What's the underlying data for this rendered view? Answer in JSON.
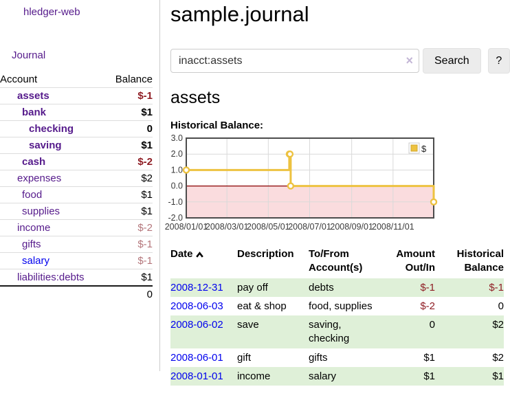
{
  "colors": {
    "link_purple": "#551a8b",
    "link_blue": "#0000ee",
    "negative_strong": "#8f1d24",
    "negative_faded": "#b4767b",
    "row_stripe_green": "#dff0d8",
    "chart_line_gold": "#edc240",
    "chart_negative_fill": "#fadcde",
    "chart_zero_line": "#8b0000",
    "chart_border": "#4c4c4c",
    "chart_grid": "#d9d9d9"
  },
  "sidebar": {
    "brand": "hledger-web",
    "journal_link": "Journal",
    "accounts_table": {
      "header_account": "Account",
      "header_balance": "Balance",
      "rows": [
        {
          "name": "assets",
          "level": 1,
          "bold": true,
          "blue": false,
          "balance": "$-1",
          "balance_style": "neg"
        },
        {
          "name": "bank",
          "level": 2,
          "bold": true,
          "blue": false,
          "balance": "$1",
          "balance_style": "pos"
        },
        {
          "name": "checking",
          "level": 3,
          "bold": true,
          "blue": false,
          "balance": "0",
          "balance_style": "pos"
        },
        {
          "name": "saving",
          "level": 3,
          "bold": true,
          "blue": false,
          "balance": "$1",
          "balance_style": "pos"
        },
        {
          "name": "cash",
          "level": 2,
          "bold": true,
          "blue": false,
          "balance": "$-2",
          "balance_style": "neg"
        },
        {
          "name": "expenses",
          "level": 1,
          "bold": false,
          "blue": false,
          "balance": "$2",
          "balance_style": "pos"
        },
        {
          "name": "food",
          "level": 2,
          "bold": false,
          "blue": false,
          "balance": "$1",
          "balance_style": "pos"
        },
        {
          "name": "supplies",
          "level": 2,
          "bold": false,
          "blue": false,
          "balance": "$1",
          "balance_style": "pos"
        },
        {
          "name": "income",
          "level": 1,
          "bold": false,
          "blue": false,
          "balance": "$-2",
          "balance_style": "neg-faded"
        },
        {
          "name": "gifts",
          "level": 2,
          "bold": false,
          "blue": false,
          "balance": "$-1",
          "balance_style": "neg-faded"
        },
        {
          "name": "salary",
          "level": 2,
          "bold": false,
          "blue": true,
          "balance": "$-1",
          "balance_style": "neg-faded"
        },
        {
          "name": "liabilities:debts",
          "level": 1,
          "bold": false,
          "blue": false,
          "balance": "$1",
          "balance_style": "pos"
        }
      ],
      "total": "0"
    }
  },
  "main": {
    "title": "sample.journal",
    "search": {
      "query": "inacct:assets",
      "clear_icon": "×",
      "button_label": "Search",
      "help_label": "?"
    },
    "account_heading": "assets",
    "chart_label": "Historical Balance:",
    "register_table": {
      "headers": {
        "date": "Date",
        "description": "Description",
        "tofrom_l1": "To/From",
        "tofrom_l2": "Account(s)",
        "amount_l1": "Amount",
        "amount_l2": "Out/In",
        "hist_l1": "Historical",
        "hist_l2": "Balance"
      },
      "rows": [
        {
          "date": "2008-12-31",
          "description": "pay off",
          "accounts": "debts",
          "amount": "$-1",
          "amount_style": "neg",
          "balance": "$-1",
          "balance_style": "neg"
        },
        {
          "date": "2008-06-03",
          "description": "eat & shop",
          "accounts": "food, supplies",
          "amount": "$-2",
          "amount_style": "neg",
          "balance": "0",
          "balance_style": "pos"
        },
        {
          "date": "2008-06-02",
          "description": "save",
          "accounts": "saving, checking",
          "amount": "0",
          "amount_style": "pos",
          "balance": "$2",
          "balance_style": "pos"
        },
        {
          "date": "2008-06-01",
          "description": "gift",
          "accounts": "gifts",
          "amount": "$1",
          "amount_style": "pos",
          "balance": "$2",
          "balance_style": "pos"
        },
        {
          "date": "2008-01-01",
          "description": "income",
          "accounts": "salary",
          "amount": "$1",
          "amount_style": "pos",
          "balance": "$1",
          "balance_style": "pos"
        }
      ]
    }
  },
  "chart_data": {
    "type": "line",
    "step": true,
    "title": "Historical Balance:",
    "xlabel": "",
    "ylabel": "",
    "xlim": [
      "2008-01-01",
      "2008-12-31"
    ],
    "ylim": [
      -2,
      3
    ],
    "y_ticks": [
      {
        "value": 3,
        "label": "3.0"
      },
      {
        "value": 2,
        "label": "2.0"
      },
      {
        "value": 1,
        "label": "1.0"
      },
      {
        "value": 0,
        "label": "0.0"
      },
      {
        "value": -1,
        "label": "-1.0"
      },
      {
        "value": -2,
        "label": "-2.0"
      }
    ],
    "x_ticks": [
      {
        "date": "2008-01-01",
        "label": "2008/01/01"
      },
      {
        "date": "2008-03-01",
        "label": "2008/03/01"
      },
      {
        "date": "2008-05-01",
        "label": "2008/05/01"
      },
      {
        "date": "2008-07-01",
        "label": "2008/07/01"
      },
      {
        "date": "2008-09-01",
        "label": "2008/09/01"
      },
      {
        "date": "2008-11-01",
        "label": "2008/11/01"
      }
    ],
    "grid": true,
    "legend_position": "top-right",
    "series": [
      {
        "name": "$",
        "points": [
          [
            "2008-01-01",
            1
          ],
          [
            "2008-06-01",
            2
          ],
          [
            "2008-06-02",
            2
          ],
          [
            "2008-06-03",
            0
          ],
          [
            "2008-12-31",
            -1
          ]
        ]
      }
    ]
  }
}
